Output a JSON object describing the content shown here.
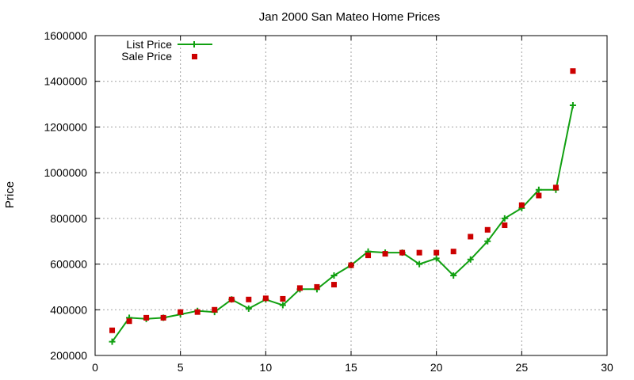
{
  "chart_data": {
    "type": "line",
    "title": "Jan 2000 San Mateo Home Prices",
    "xlabel": "",
    "ylabel": "Price",
    "xlim": [
      0,
      30
    ],
    "ylim": [
      200000,
      1600000
    ],
    "xticks": [
      0,
      5,
      10,
      15,
      20,
      25,
      30
    ],
    "yticks": [
      200000,
      400000,
      600000,
      800000,
      1000000,
      1200000,
      1400000,
      1600000
    ],
    "grid": true,
    "legend_position": "top-left",
    "series": [
      {
        "name": "List Price",
        "style": "line-plus",
        "color": "#11a011",
        "x": [
          1,
          2,
          3,
          4,
          5,
          6,
          7,
          8,
          9,
          10,
          11,
          12,
          13,
          14,
          15,
          16,
          17,
          18,
          19,
          20,
          21,
          22,
          23,
          24,
          25,
          26,
          27,
          28
        ],
        "y": [
          260000,
          365000,
          360000,
          365000,
          380000,
          395000,
          390000,
          445000,
          405000,
          445000,
          420000,
          490000,
          490000,
          550000,
          595000,
          655000,
          650000,
          650000,
          600000,
          625000,
          550000,
          620000,
          700000,
          800000,
          845000,
          925000,
          925000,
          1295000
        ]
      },
      {
        "name": "Sale Price",
        "style": "square-markers",
        "color": "#cc0000",
        "x": [
          1,
          2,
          3,
          4,
          5,
          6,
          7,
          8,
          9,
          10,
          11,
          12,
          13,
          14,
          15,
          16,
          17,
          18,
          19,
          20,
          21,
          22,
          23,
          24,
          25,
          26,
          27,
          28
        ],
        "y": [
          310000,
          350000,
          365000,
          365000,
          390000,
          390000,
          400000,
          445000,
          445000,
          450000,
          448000,
          495000,
          500000,
          510000,
          595000,
          638000,
          645000,
          650000,
          650000,
          650000,
          655000,
          720000,
          750000,
          770000,
          858000,
          900000,
          935000,
          1445000
        ]
      }
    ]
  }
}
